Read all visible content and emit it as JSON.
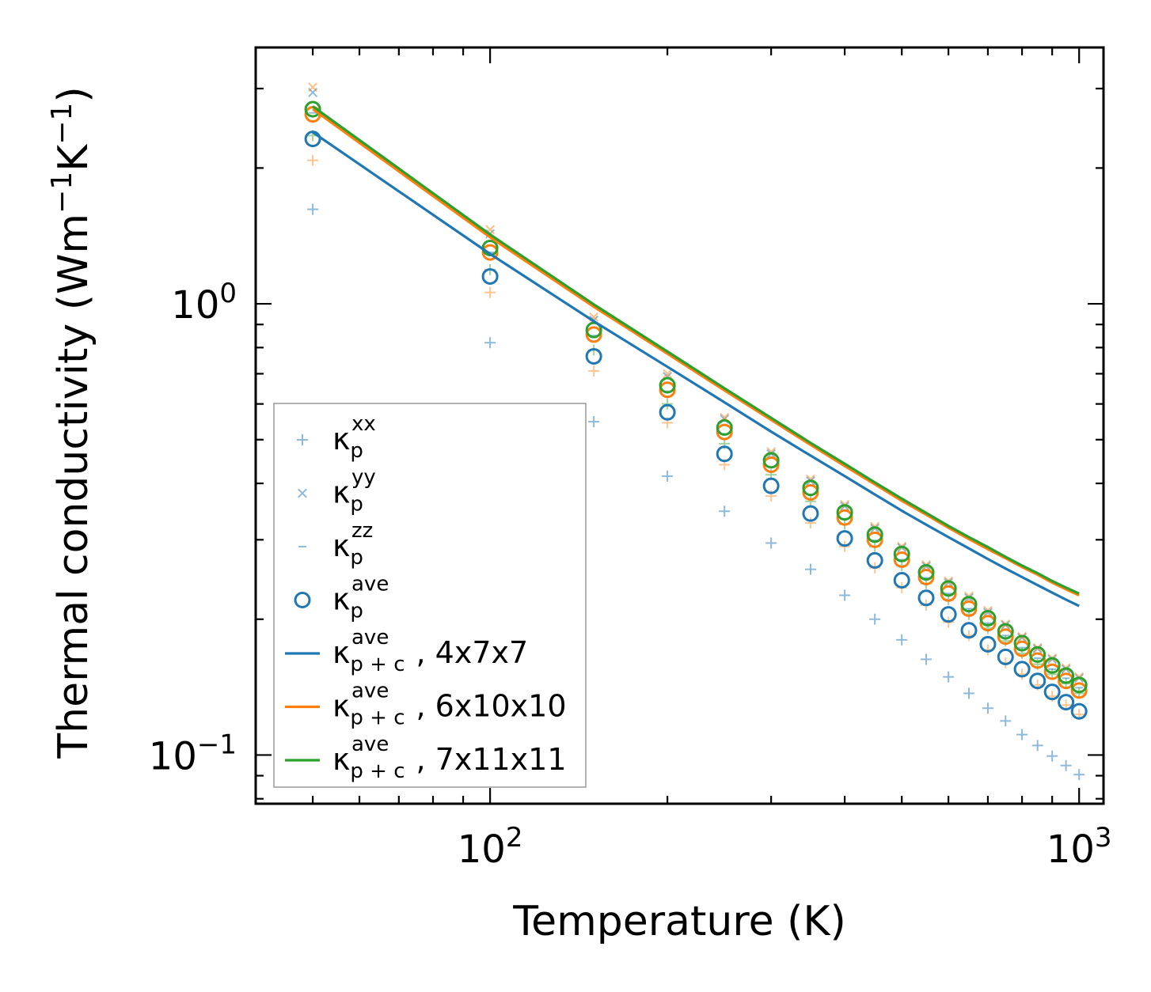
{
  "chart_data": {
    "type": "scatter",
    "xscale": "log",
    "yscale": "log",
    "xlim": [
      40,
      1100
    ],
    "ylim": [
      0.078,
      3.7
    ],
    "xlabel": "Temperature (K)",
    "ylabel": "Thermal conductivity (Wm⁻¹K⁻¹)",
    "ylabel_parts": {
      "prefix": "Thermal conductivity (Wm",
      "exp1": "−1",
      "mid": "K",
      "exp2": "−1",
      "suffix": ")"
    },
    "xticks": [
      {
        "value": 100,
        "base": "10",
        "exp": "2"
      },
      {
        "value": 1000,
        "base": "10",
        "exp": "3"
      }
    ],
    "yticks": [
      {
        "value": 1,
        "base": "10",
        "exp": "0"
      },
      {
        "value": 0.1,
        "base": "10",
        "exp": "−1"
      }
    ],
    "x": [
      50,
      100,
      150,
      200,
      250,
      300,
      350,
      400,
      450,
      500,
      550,
      600,
      650,
      700,
      750,
      800,
      850,
      900,
      950,
      1000
    ],
    "series": [
      {
        "name": "κ_p^xx C1",
        "kind": "plus",
        "color": "#1f77b4",
        "alpha": 0.5,
        "values": [
          1.62,
          0.82,
          0.548,
          0.415,
          0.347,
          0.295,
          0.258,
          0.226,
          0.2,
          0.18,
          0.163,
          0.149,
          0.137,
          0.127,
          0.119,
          0.111,
          0.105,
          0.0995,
          0.0948,
          0.0905
        ]
      },
      {
        "name": "κ_p^xx C2",
        "kind": "plus",
        "color": "#ff7f0e",
        "alpha": 0.45,
        "values": [
          2.08,
          1.06,
          0.71,
          0.545,
          0.44,
          0.375,
          0.327,
          0.29,
          0.26,
          0.235,
          0.215,
          0.197,
          0.184,
          0.171,
          0.16,
          0.151,
          0.143,
          0.135,
          0.129,
          0.123
        ]
      },
      {
        "name": "κ_p^xx C3",
        "kind": "plus",
        "color": "#2ca02c",
        "alpha": 0.45,
        "values": [
          2.36,
          1.19,
          0.79,
          0.6,
          0.49,
          0.418,
          0.365,
          0.325,
          0.29,
          0.263,
          0.24,
          0.221,
          0.205,
          0.191,
          0.179,
          0.168,
          0.159,
          0.151,
          0.144,
          0.137
        ]
      },
      {
        "name": "κ_p^yy C1",
        "kind": "cross",
        "color": "#1f77b4",
        "alpha": 0.5,
        "values": [
          2.94,
          1.43,
          0.92,
          0.69,
          0.555,
          0.465,
          0.405,
          0.356,
          0.318,
          0.288,
          0.262,
          0.241,
          0.223,
          0.207,
          0.194,
          0.182,
          0.172,
          0.163,
          0.155,
          0.148
        ]
      },
      {
        "name": "κ_p^yy C2",
        "kind": "cross",
        "color": "#ff7f0e",
        "alpha": 0.5,
        "values": [
          3.02,
          1.46,
          0.935,
          0.7,
          0.56,
          0.47,
          0.409,
          0.359,
          0.321,
          0.29,
          0.264,
          0.243,
          0.225,
          0.209,
          0.195,
          0.183,
          0.173,
          0.164,
          0.156,
          0.149
        ]
      },
      {
        "name": "κ_p^zz",
        "kind": "dash",
        "color": "#1f77b4",
        "alpha": 0.5,
        "values": [
          2.65,
          1.3,
          0.85,
          0.64,
          0.515,
          0.435,
          0.378,
          0.334,
          0.299,
          0.271,
          0.247,
          0.228,
          0.211,
          0.196,
          0.184,
          0.173,
          0.164,
          0.155,
          0.148,
          0.141
        ]
      },
      {
        "name": "κ_p^ave C1",
        "kind": "circle",
        "color": "#1f77b4",
        "alpha": 1,
        "values": [
          2.32,
          1.15,
          0.765,
          0.575,
          0.465,
          0.395,
          0.343,
          0.302,
          0.27,
          0.244,
          0.223,
          0.205,
          0.189,
          0.176,
          0.165,
          0.155,
          0.146,
          0.138,
          0.131,
          0.125
        ]
      },
      {
        "name": "κ_p^ave C2",
        "kind": "circle",
        "color": "#ff7f0e",
        "alpha": 1,
        "values": [
          2.63,
          1.3,
          0.855,
          0.645,
          0.52,
          0.44,
          0.382,
          0.336,
          0.3,
          0.271,
          0.248,
          0.228,
          0.211,
          0.196,
          0.183,
          0.172,
          0.162,
          0.153,
          0.146,
          0.139
        ]
      },
      {
        "name": "κ_p^ave C3",
        "kind": "circle",
        "color": "#2ca02c",
        "alpha": 1,
        "values": [
          2.7,
          1.33,
          0.875,
          0.66,
          0.532,
          0.45,
          0.391,
          0.345,
          0.308,
          0.279,
          0.254,
          0.234,
          0.216,
          0.201,
          0.188,
          0.177,
          0.167,
          0.158,
          0.15,
          0.143
        ]
      },
      {
        "name": "κ_p+c^ave, 4x7x7",
        "kind": "line",
        "color": "#1f77b4",
        "alpha": 1,
        "values": [
          2.4,
          1.29,
          0.915,
          0.725,
          0.605,
          0.521,
          0.461,
          0.415,
          0.378,
          0.348,
          0.324,
          0.304,
          0.287,
          0.272,
          0.259,
          0.248,
          0.238,
          0.229,
          0.221,
          0.214
        ]
      },
      {
        "name": "κ_p+c^ave, 6x10x10",
        "kind": "line",
        "color": "#ff7f0e",
        "alpha": 1,
        "values": [
          2.7,
          1.405,
          0.985,
          0.775,
          0.643,
          0.553,
          0.487,
          0.437,
          0.398,
          0.366,
          0.341,
          0.319,
          0.301,
          0.286,
          0.273,
          0.261,
          0.251,
          0.241,
          0.233,
          0.226
        ]
      },
      {
        "name": "κ_p+c^ave, 7x11x11",
        "kind": "line",
        "color": "#2ca02c",
        "alpha": 1,
        "values": [
          2.74,
          1.425,
          0.997,
          0.784,
          0.65,
          0.559,
          0.492,
          0.442,
          0.402,
          0.37,
          0.344,
          0.322,
          0.304,
          0.289,
          0.275,
          0.263,
          0.253,
          0.243,
          0.235,
          0.228
        ]
      }
    ],
    "legend": {
      "location": "lower-left",
      "entries": [
        {
          "kind": "plus",
          "color": "#1f77b4",
          "alpha": 0.5,
          "base": "κ",
          "sub": "p",
          "sup": "xx",
          "suffix": ""
        },
        {
          "kind": "cross",
          "color": "#1f77b4",
          "alpha": 0.5,
          "base": "κ",
          "sub": "p",
          "sup": "yy",
          "suffix": ""
        },
        {
          "kind": "dash",
          "color": "#1f77b4",
          "alpha": 0.5,
          "base": "κ",
          "sub": "p",
          "sup": "zz",
          "suffix": ""
        },
        {
          "kind": "circle",
          "color": "#1f77b4",
          "alpha": 1,
          "base": "κ",
          "sub": "p",
          "sup": "ave",
          "suffix": ""
        },
        {
          "kind": "line",
          "color": "#1f77b4",
          "alpha": 1,
          "base": "κ",
          "sub": "p + c",
          "sup": "ave",
          "suffix": ", 4x7x7"
        },
        {
          "kind": "line",
          "color": "#ff7f0e",
          "alpha": 1,
          "base": "κ",
          "sub": "p + c",
          "sup": "ave",
          "suffix": ", 6x10x10"
        },
        {
          "kind": "line",
          "color": "#2ca02c",
          "alpha": 1,
          "base": "κ",
          "sub": "p + c",
          "sup": "ave",
          "suffix": ", 7x11x11"
        }
      ]
    }
  }
}
